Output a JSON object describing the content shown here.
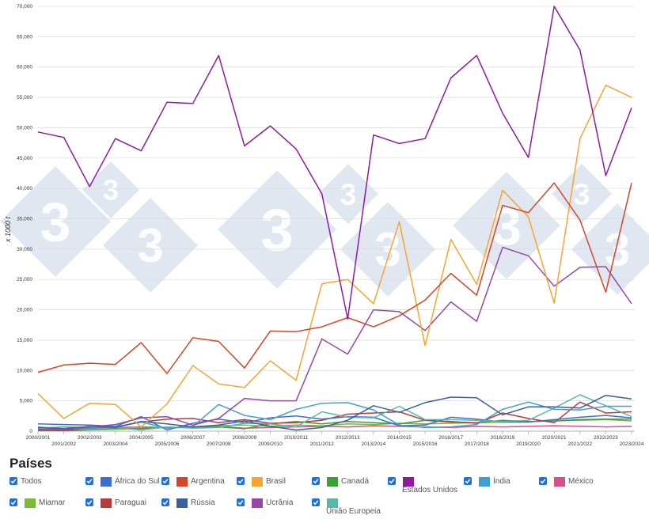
{
  "chart_data": {
    "type": "line",
    "ylabel": "x 1000 t",
    "ylim": [
      0,
      70000
    ],
    "yticks": [
      "0",
      "5,000",
      "10,000",
      "15,000",
      "20,000",
      "25,000",
      "30,000",
      "35,000",
      "40,000",
      "45,000",
      "50,000",
      "55,000",
      "60,000",
      "65,000",
      "70,000"
    ],
    "categories": [
      "2000/2001",
      "2001/2002",
      "2002/2003",
      "2003/2004",
      "2004/2005",
      "2005/2006",
      "2006/2007",
      "2007/2008",
      "2008/2009",
      "2009/2010",
      "2010/2011",
      "2011/2012",
      "2012/2013",
      "2013/2014",
      "2014/2015",
      "2015/2016",
      "2016/2017",
      "2017/2018",
      "2018/2019",
      "2019/2020",
      "2020/2021",
      "2021/2022",
      "2022/2023",
      "2023/2024"
    ],
    "series": [
      {
        "name": "Estados Unidos",
        "color": "#8e1b9e",
        "values": [
          49300,
          48400,
          40300,
          48200,
          46200,
          54200,
          54000,
          61900,
          47000,
          50300,
          46500,
          39100,
          18500,
          48800,
          47400,
          48200,
          58200,
          61900,
          52400,
          45100,
          70000,
          62800,
          42100,
          53300
        ]
      },
      {
        "name": "Argentina",
        "color": "#d2472a",
        "values": [
          9700,
          10900,
          11200,
          11000,
          14600,
          9500,
          15400,
          14800,
          10400,
          16500,
          16400,
          17200,
          18700,
          17200,
          19000,
          21600,
          26000,
          22400,
          37200,
          36000,
          40900,
          34800,
          22900,
          40900
        ]
      },
      {
        "name": "Brasil",
        "color": "#f4a534",
        "values": [
          6200,
          2100,
          4600,
          4400,
          700,
          4500,
          10800,
          7800,
          7200,
          11600,
          8400,
          24300,
          25000,
          21000,
          34500,
          14100,
          31600,
          24200,
          39700,
          35300,
          21100,
          48200,
          57000,
          55000
        ]
      },
      {
        "name": "Ucrânia",
        "color": "#9747a8",
        "values": [
          300,
          200,
          700,
          1100,
          2200,
          2400,
          1000,
          2100,
          5400,
          5000,
          5000,
          15200,
          12700,
          20000,
          19700,
          16600,
          21300,
          18100,
          30300,
          28900,
          23900,
          27000,
          27100,
          21000
        ]
      },
      {
        "name": "Rússia",
        "color": "#3a5f9a",
        "values": [
          600,
          400,
          800,
          600,
          1600,
          1200,
          700,
          1000,
          1700,
          800,
          200,
          600,
          1800,
          4200,
          3100,
          4700,
          5600,
          5500,
          2700,
          4000,
          4000,
          3800,
          5900,
          5300
        ]
      },
      {
        "name": "Índia",
        "color": "#3ea0d0",
        "values": [
          500,
          700,
          600,
          700,
          1500,
          500,
          800,
          4400,
          2600,
          1900,
          3600,
          4600,
          4700,
          3500,
          1000,
          600,
          700,
          1100,
          3600,
          4800,
          3600,
          3500,
          4100,
          4100
        ]
      },
      {
        "name": "União Europeia",
        "color": "#5ab8a8",
        "values": [
          700,
          400,
          300,
          600,
          200,
          700,
          500,
          600,
          1300,
          1200,
          700,
          3200,
          2300,
          2200,
          4100,
          1900,
          1900,
          1800,
          1600,
          1800,
          3800,
          6000,
          4200,
          2400
        ]
      },
      {
        "name": "África do Sul",
        "color": "#3a6fce",
        "values": [
          1200,
          1100,
          1000,
          800,
          2400,
          200,
          1300,
          2000,
          1400,
          2200,
          2500,
          2000,
          2400,
          2300,
          900,
          1000,
          2300,
          2000,
          1500,
          1500,
          1900,
          2300,
          2600,
          2200
        ]
      },
      {
        "name": "Paraguai",
        "color": "#b83a3a",
        "values": [
          200,
          100,
          300,
          700,
          1500,
          2000,
          2100,
          1400,
          1900,
          1300,
          1400,
          1800,
          2800,
          3000,
          3200,
          1800,
          1600,
          1300,
          3000,
          2100,
          1400,
          4800,
          3000,
          3200
        ]
      },
      {
        "name": "Canadá",
        "color": "#3f9e3a",
        "values": [
          100,
          200,
          300,
          500,
          400,
          600,
          600,
          700,
          400,
          1200,
          1600,
          1200,
          1600,
          1400,
          1200,
          1800,
          1500,
          1400,
          1800,
          1600,
          1700,
          1900,
          2000,
          2000
        ]
      },
      {
        "name": "Miamar",
        "color": "#7cb83a",
        "values": [
          100,
          100,
          200,
          300,
          500,
          600,
          700,
          900,
          1000,
          800,
          1000,
          900,
          1200,
          1100,
          1300,
          1200,
          1300,
          1400,
          1500,
          1600,
          1700,
          1800,
          1900,
          1700
        ]
      },
      {
        "name": "México",
        "color": "#d6508a",
        "values": [
          300,
          400,
          500,
          600,
          700,
          600,
          700,
          800,
          500,
          600,
          700,
          800,
          700,
          900,
          800,
          700,
          600,
          800,
          700,
          800,
          900,
          800,
          700,
          800
        ]
      }
    ]
  },
  "legend": {
    "title": "Países",
    "items": [
      {
        "label": "Todos",
        "color": ""
      },
      {
        "label": "África do Sul",
        "color": "#3a6fce"
      },
      {
        "label": "Argentina",
        "color": "#d2472a"
      },
      {
        "label": "Brasil",
        "color": "#f4a534"
      },
      {
        "label": "Canadá",
        "color": "#3f9e3a"
      },
      {
        "label": "Estados Unidos",
        "color": "#8e1b9e"
      },
      {
        "label": "Índia",
        "color": "#3ea0d0"
      },
      {
        "label": "México",
        "color": "#d6508a"
      },
      {
        "label": "Miamar",
        "color": "#7cb83a"
      },
      {
        "label": "Paraguai",
        "color": "#b83a3a"
      },
      {
        "label": "Rússia",
        "color": "#3a5f9a"
      },
      {
        "label": "Ucrânia",
        "color": "#9747a8"
      },
      {
        "label": "União Europeia",
        "color": "#5ab8a8"
      }
    ]
  }
}
